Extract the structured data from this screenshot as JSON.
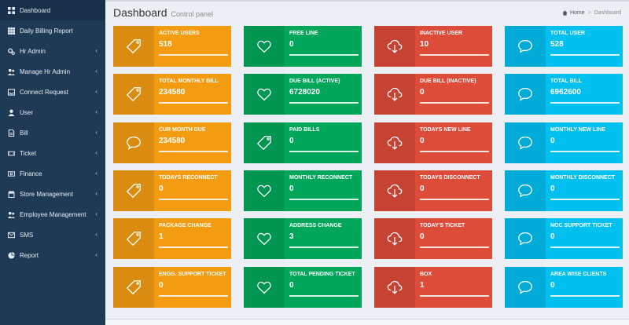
{
  "sidebar": {
    "items": [
      {
        "label": "Dashboard",
        "icon": "dashboard-icon",
        "active": true,
        "chevron": false
      },
      {
        "label": "Daily Billing Report",
        "icon": "grid-icon",
        "active": false,
        "chevron": false
      },
      {
        "label": "Hr Admin",
        "icon": "cogs-icon",
        "active": false,
        "chevron": true
      },
      {
        "label": "Manage Hr Admin",
        "icon": "users-icon",
        "active": false,
        "chevron": true
      },
      {
        "label": "Connect Request",
        "icon": "inbox-icon",
        "active": false,
        "chevron": true
      },
      {
        "label": "User",
        "icon": "user-icon",
        "active": false,
        "chevron": true
      },
      {
        "label": "Bill",
        "icon": "file-icon",
        "active": false,
        "chevron": true
      },
      {
        "label": "Ticket",
        "icon": "ticket-icon",
        "active": false,
        "chevron": true
      },
      {
        "label": "Finance",
        "icon": "money-icon",
        "active": false,
        "chevron": true
      },
      {
        "label": "Store Management",
        "icon": "store-icon",
        "active": false,
        "chevron": true
      },
      {
        "label": "Employee Management",
        "icon": "employees-icon",
        "active": false,
        "chevron": true
      },
      {
        "label": "SMS",
        "icon": "envelope-icon",
        "active": false,
        "chevron": true
      },
      {
        "label": "Report",
        "icon": "pie-chart-icon",
        "active": false,
        "chevron": true
      }
    ],
    "chevron_glyph": "‹"
  },
  "header": {
    "title": "Dashboard",
    "subtitle": "Control panel",
    "breadcrumb": {
      "home": "Home",
      "separator": ">",
      "current": "Dashboard"
    }
  },
  "colors": {
    "orange": "#f39c12",
    "green": "#00a65a",
    "red": "#dd4b39",
    "blue": "#00c0ef",
    "sidebar": "#1f3a55"
  },
  "cards": {
    "orange": [
      {
        "label": "ACTIVE USERS",
        "value": "518",
        "icon": "tag-icon"
      },
      {
        "label": "TOTAL MONTHLY BILL",
        "value": "234580",
        "icon": "tag-icon"
      },
      {
        "label": "CUR MONTH DUE",
        "value": "234580",
        "icon": "comment-icon"
      },
      {
        "label": "TODAYS RECONNECT",
        "value": "0",
        "icon": "tag-icon"
      },
      {
        "label": "PACKAGE CHANGE",
        "value": "1",
        "icon": "tag-icon"
      },
      {
        "label": "ENGG. SUPPORT TICKET",
        "value": "0",
        "icon": "tag-icon"
      }
    ],
    "green": [
      {
        "label": "FREE LINE",
        "value": "0",
        "icon": "heart-icon"
      },
      {
        "label": "DUE BILL (ACTIVE)",
        "value": "6728020",
        "icon": "heart-icon"
      },
      {
        "label": "PAID BILLS",
        "value": "0",
        "icon": "tag-icon"
      },
      {
        "label": "MONTHLY RECONNECT",
        "value": "0",
        "icon": "heart-icon"
      },
      {
        "label": "ADDRESS CHANGE",
        "value": "3",
        "icon": "heart-icon"
      },
      {
        "label": "TOTAL PENDING TICKET",
        "value": "0",
        "icon": "heart-icon"
      }
    ],
    "red": [
      {
        "label": "INACTIVE USER",
        "value": "10",
        "icon": "cloud-download-icon"
      },
      {
        "label": "DUE BILL (INACTIVE)",
        "value": "0",
        "icon": "cloud-download-icon"
      },
      {
        "label": "TODAYS NEW LINE",
        "value": "0",
        "icon": "cloud-download-icon"
      },
      {
        "label": "TODAYS DISCONNECT",
        "value": "0",
        "icon": "cloud-download-icon"
      },
      {
        "label": "TODAY'S TICKET",
        "value": "0",
        "icon": "cloud-download-icon"
      },
      {
        "label": "BOX",
        "value": "1",
        "icon": "cloud-download-icon"
      }
    ],
    "blue": [
      {
        "label": "TOTAL USER",
        "value": "528",
        "icon": "comment-icon"
      },
      {
        "label": "TOTAL BILL",
        "value": "6962600",
        "icon": "comment-icon"
      },
      {
        "label": "MONTHLY NEW LINE",
        "value": "0",
        "icon": "comment-icon"
      },
      {
        "label": "MONTHLY DISCONNECT",
        "value": "0",
        "icon": "comment-icon"
      },
      {
        "label": "NOC SUPPORT TICKET",
        "value": "0",
        "icon": "comment-icon"
      },
      {
        "label": "AREA WISE CLIENTS",
        "value": "0",
        "icon": "comment-icon"
      }
    ]
  }
}
